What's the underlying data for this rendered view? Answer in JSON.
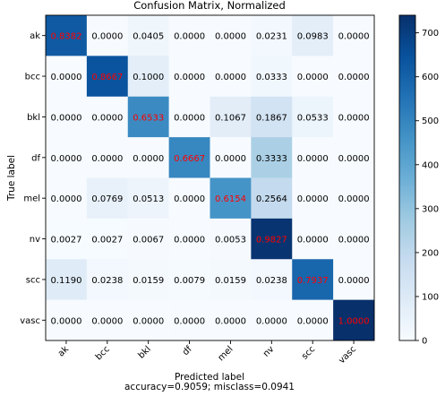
{
  "chart_data": {
    "type": "heatmap",
    "title": "Confusion Matrix, Normalized",
    "xlabel": "Predicted label",
    "ylabel": "True label",
    "footer": "accuracy=0.9059; misclass=0.0941",
    "rows": [
      "ak",
      "bcc",
      "bkl",
      "df",
      "mel",
      "nv",
      "scc",
      "vasc"
    ],
    "columns": [
      "ak",
      "bcc",
      "bkl",
      "df",
      "mel",
      "nv",
      "scc",
      "vasc"
    ],
    "values": [
      [
        "0.8382",
        "0.0000",
        "0.0405",
        "0.0000",
        "0.0000",
        "0.0231",
        "0.0983",
        "0.0000"
      ],
      [
        "0.0000",
        "0.8667",
        "0.1000",
        "0.0000",
        "0.0000",
        "0.0333",
        "0.0000",
        "0.0000"
      ],
      [
        "0.0000",
        "0.0000",
        "0.6533",
        "0.0000",
        "0.1067",
        "0.1867",
        "0.0533",
        "0.0000"
      ],
      [
        "0.0000",
        "0.0000",
        "0.0000",
        "0.6667",
        "0.0000",
        "0.3333",
        "0.0000",
        "0.0000"
      ],
      [
        "0.0000",
        "0.0769",
        "0.0513",
        "0.0000",
        "0.6154",
        "0.2564",
        "0.0000",
        "0.0000"
      ],
      [
        "0.0027",
        "0.0027",
        "0.0067",
        "0.0000",
        "0.0053",
        "0.9827",
        "0.0000",
        "0.0000"
      ],
      [
        "0.1190",
        "0.0238",
        "0.0159",
        "0.0079",
        "0.0159",
        "0.0238",
        "0.7937",
        "0.0000"
      ],
      [
        "0.0000",
        "0.0000",
        "0.0000",
        "0.0000",
        "0.0000",
        "0.0000",
        "0.0000",
        "1.0000"
      ]
    ],
    "colorbar": {
      "colormap": "Blues",
      "min": 0,
      "max": 740,
      "ticks": [
        0,
        100,
        200,
        300,
        400,
        500,
        600,
        700
      ]
    },
    "colors": {
      "diagonal_text": "#ff0000",
      "off_diagonal_text": "#000000",
      "light_text": "#ffffff"
    }
  }
}
